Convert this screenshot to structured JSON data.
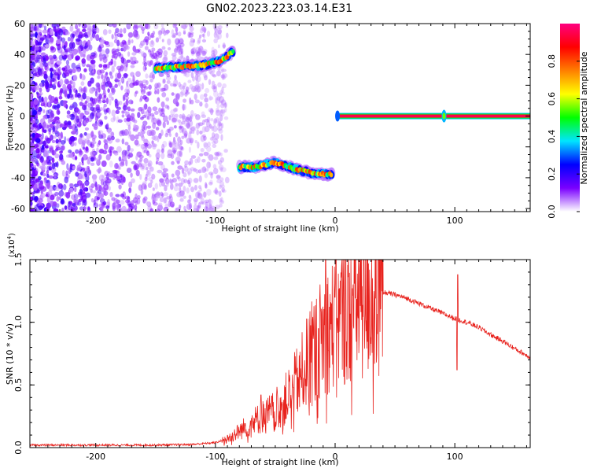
{
  "title": "GN02.2023.223.03.14.E31",
  "chart_data": [
    {
      "type": "heatmap",
      "xlabel": "Height of straight line (km)",
      "ylabel": "Frequency (Hz)",
      "xlim": [
        -255,
        163
      ],
      "ylim": [
        -62,
        60
      ],
      "xticks": [
        -200,
        -100,
        0,
        100
      ],
      "yticks": [
        60,
        40,
        20,
        0,
        -20,
        -40,
        -60
      ],
      "features": [
        {
          "name": "broadband noise",
          "x_range": [
            -255,
            -100
          ],
          "y_range": [
            -62,
            60
          ]
        },
        {
          "name": "upper track",
          "points": [
            [
              -150,
              31
            ],
            [
              -130,
              32
            ],
            [
              -110,
              33
            ],
            [
              -95,
              36
            ],
            [
              -85,
              42
            ]
          ]
        },
        {
          "name": "lower track",
          "points": [
            [
              -80,
              -33
            ],
            [
              -65,
              -33
            ],
            [
              -50,
              -30
            ],
            [
              -35,
              -34
            ],
            [
              -20,
              -37
            ],
            [
              -2,
              -38
            ]
          ]
        },
        {
          "name": "zero-frequency line",
          "x_range": [
            2,
            163
          ],
          "y": 0
        }
      ],
      "colorbar": {
        "label": "Normalized spectral amplitude",
        "range": [
          0,
          1
        ],
        "ticks": [
          "0.0",
          "0.2",
          "0.4",
          "0.6",
          "0.8"
        ],
        "colors": [
          "#ffffff",
          "#7a00ff",
          "#0000ff",
          "#00e5ff",
          "#00ff00",
          "#ffff00",
          "#ff7f00",
          "#ff0000",
          "#ff0080"
        ]
      }
    },
    {
      "type": "line",
      "xlabel": "Height of straight line (km)",
      "ylabel": "SNR (10 * v/v)",
      "multiplier_label": "(x10",
      "multiplier_exp": "4",
      "multiplier_close": ")",
      "xlim": [
        -255,
        163
      ],
      "ylim": [
        0,
        1.5
      ],
      "xticks": [
        -200,
        -100,
        0,
        100
      ],
      "yticks": [
        "0.0",
        "0.5",
        "1.0",
        "1.5"
      ],
      "series": [
        {
          "color": "#e8231e",
          "envelope": [
            [
              -255,
              0.02
            ],
            [
              -200,
              0.02
            ],
            [
              -150,
              0.02
            ],
            [
              -120,
              0.025
            ],
            [
              -100,
              0.04
            ],
            [
              -90,
              0.07
            ],
            [
              -80,
              0.13
            ],
            [
              -70,
              0.2
            ],
            [
              -60,
              0.25
            ],
            [
              -50,
              0.3
            ],
            [
              -40,
              0.4
            ],
            [
              -30,
              0.55
            ],
            [
              -20,
              0.75
            ],
            [
              -10,
              0.9
            ],
            [
              0,
              1.0
            ],
            [
              10,
              1.08
            ],
            [
              20,
              1.17
            ],
            [
              30,
              1.21
            ],
            [
              40,
              1.24
            ],
            [
              50,
              1.22
            ],
            [
              60,
              1.19
            ],
            [
              70,
              1.15
            ],
            [
              80,
              1.11
            ],
            [
              90,
              1.07
            ],
            [
              100,
              1.03
            ],
            [
              110,
              1.0
            ],
            [
              120,
              0.96
            ],
            [
              130,
              0.9
            ],
            [
              140,
              0.85
            ],
            [
              150,
              0.79
            ],
            [
              163,
              0.72
            ]
          ],
          "spikes": [
            [
              -62,
              0.42
            ],
            [
              -35,
              0.48
            ],
            [
              -14,
              0.95
            ],
            [
              -8,
              1.52
            ],
            [
              0,
              1.2
            ],
            [
              9,
              1.5
            ],
            [
              102,
              0.62
            ],
            [
              102.5,
              1.38
            ]
          ]
        }
      ]
    }
  ]
}
